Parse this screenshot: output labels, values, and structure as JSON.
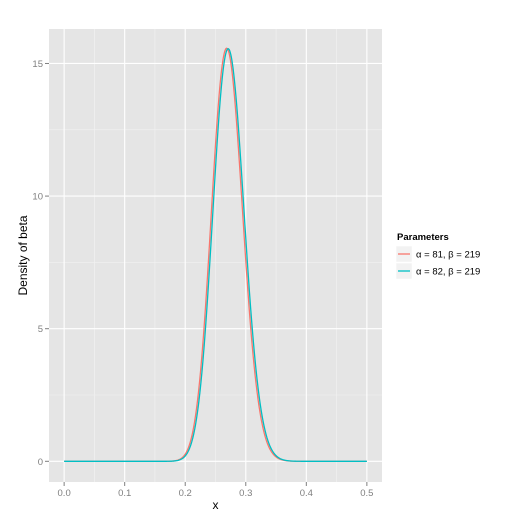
{
  "chart_data": {
    "type": "line",
    "title": "",
    "xlabel": "x",
    "ylabel": "Density of beta",
    "xlim": [
      -0.025,
      0.525
    ],
    "ylim": [
      -0.78,
      16.3
    ],
    "x_ticks": [
      0.0,
      0.1,
      0.2,
      0.3,
      0.4,
      0.5
    ],
    "x_tick_labels": [
      "0.0",
      "0.1",
      "0.2",
      "0.3",
      "0.4",
      "0.5"
    ],
    "y_ticks": [
      0,
      5,
      10,
      15
    ],
    "y_tick_labels": [
      "0",
      "5",
      "10",
      "15"
    ],
    "grid": true,
    "background": "#e5e5e5",
    "legend": {
      "title": "Parameters",
      "position": "right"
    },
    "x_domain": [
      0.0,
      0.5
    ],
    "series": [
      {
        "name": "α = 81, β = 219",
        "distribution": "beta",
        "alpha": 81,
        "beta": 219,
        "color": "#f8766d"
      },
      {
        "name": "α = 82, β = 219",
        "distribution": "beta",
        "alpha": 82,
        "beta": 219,
        "color": "#00bfc4"
      }
    ]
  }
}
